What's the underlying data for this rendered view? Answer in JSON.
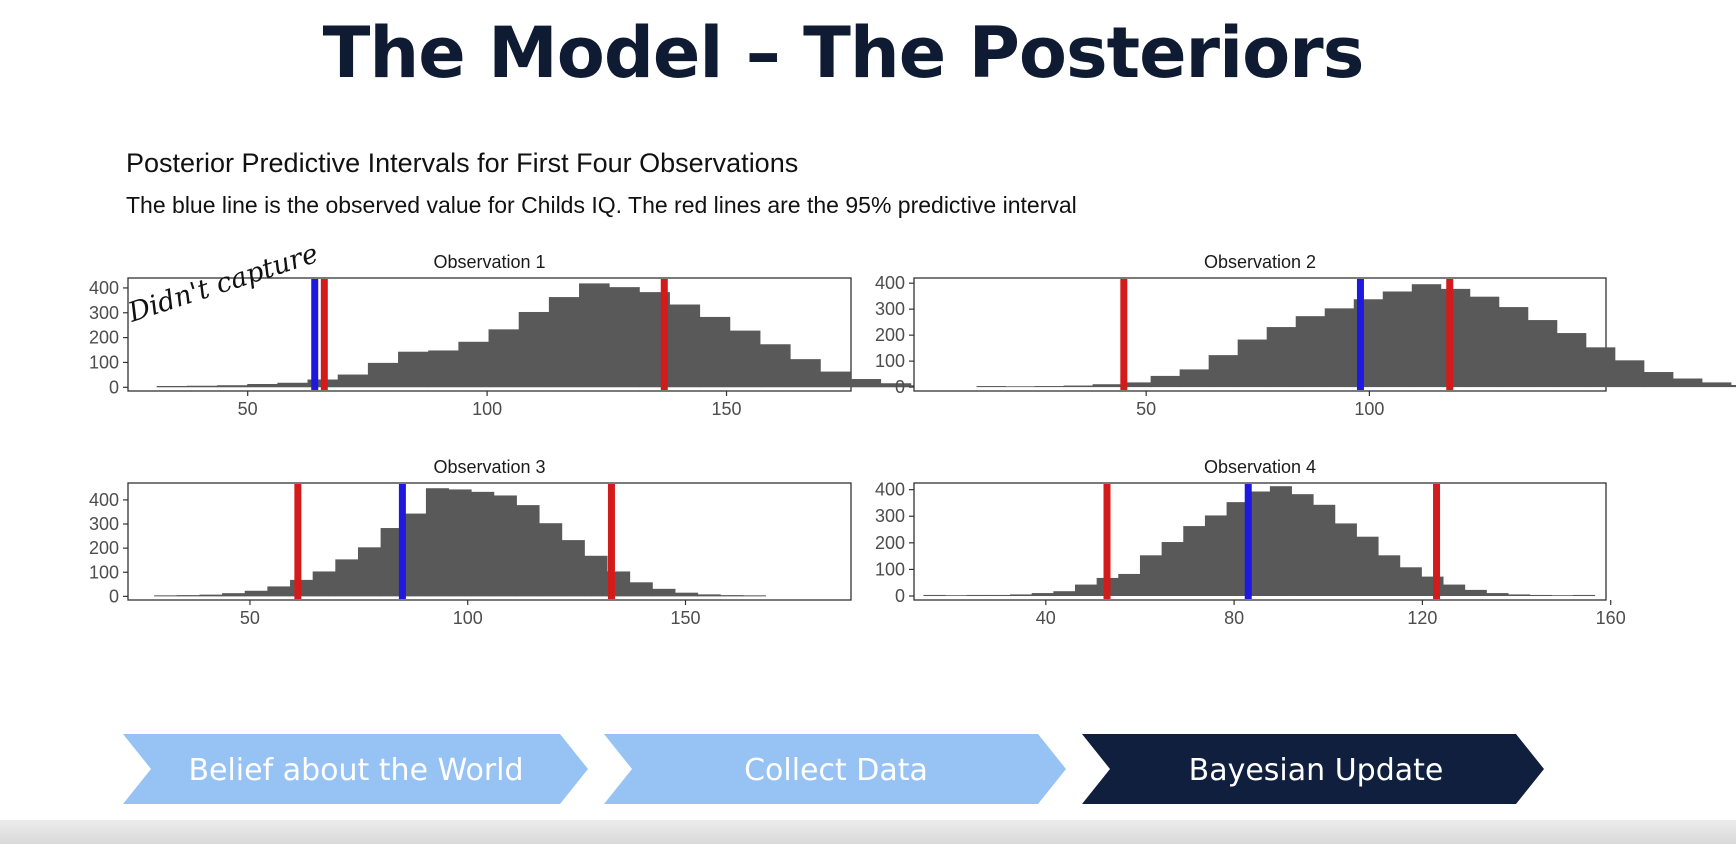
{
  "slide": {
    "title": "The Model – The Posteriors"
  },
  "chart_data": {
    "type": "bar",
    "title": "Posterior Predictive Intervals for First Four Observations",
    "subtitle": "The blue line is the observed value for Childs IQ. The red lines are the 95% predictive interval",
    "grid": false,
    "colors": {
      "bars": "#595959",
      "observed": "#1f18e0",
      "interval": "#d41b1b"
    },
    "panels": [
      {
        "title": "Observation 1",
        "bin_start": 31,
        "bin_width": 6.3,
        "counts": [
          2,
          3,
          5,
          10,
          15,
          28,
          48,
          95,
          140,
          145,
          180,
          230,
          300,
          360,
          415,
          400,
          380,
          330,
          280,
          225,
          170,
          110,
          60,
          30,
          13,
          5,
          2,
          1,
          1
        ],
        "xlim": [
          25,
          176
        ],
        "x_ticks": [
          50,
          100,
          150
        ],
        "y_ticks": [
          0,
          100,
          200,
          300,
          400
        ],
        "ylim": [
          -15,
          440
        ],
        "observed": 64,
        "interval": [
          66,
          137
        ]
      },
      {
        "title": "Observation 2",
        "bin_start": 12,
        "bin_width": 6.5,
        "counts": [
          1,
          0,
          1,
          3,
          8,
          15,
          40,
          65,
          120,
          180,
          228,
          270,
          300,
          335,
          365,
          393,
          375,
          345,
          305,
          255,
          205,
          150,
          100,
          55,
          30,
          15,
          5,
          1
        ],
        "xlim": [
          -2,
          153
        ],
        "x_ticks": [
          50,
          100
        ],
        "y_ticks": [
          0,
          100,
          200,
          300,
          400
        ],
        "ylim": [
          -15,
          420
        ],
        "observed": 98,
        "interval": [
          45,
          118
        ]
      },
      {
        "title": "Observation 3",
        "bin_start": 28,
        "bin_width": 5.2,
        "counts": [
          1,
          2,
          4,
          10,
          20,
          38,
          65,
          100,
          150,
          200,
          280,
          340,
          445,
          440,
          430,
          415,
          375,
          300,
          230,
          165,
          100,
          55,
          28,
          12,
          5,
          2,
          1
        ],
        "xlim": [
          22,
          188
        ],
        "x_ticks": [
          50,
          100,
          150
        ],
        "y_ticks": [
          0,
          100,
          200,
          300,
          400
        ],
        "ylim": [
          -15,
          470
        ],
        "observed": 85,
        "interval": [
          61,
          133
        ]
      },
      {
        "title": "Observation 4",
        "bin_start": 14,
        "bin_width": 4.6,
        "counts": [
          1,
          0,
          1,
          1,
          3,
          8,
          15,
          40,
          65,
          80,
          150,
          200,
          260,
          300,
          350,
          390,
          410,
          380,
          340,
          270,
          220,
          150,
          105,
          70,
          40,
          20,
          8,
          3,
          1,
          0,
          1
        ],
        "xlim": [
          12,
          159
        ],
        "x_ticks": [
          40,
          80,
          120,
          160
        ],
        "y_ticks": [
          0,
          100,
          200,
          300,
          400
        ],
        "ylim": [
          -15,
          425
        ],
        "observed": 83,
        "interval": [
          53,
          123
        ]
      }
    ]
  },
  "annotation": {
    "handwritten_note": "Didn't capture"
  },
  "process_flow": {
    "steps": [
      {
        "label": "Belief about the World",
        "active": false
      },
      {
        "label": "Collect Data",
        "active": false
      },
      {
        "label": "Bayesian Update",
        "active": true
      }
    ],
    "colors": {
      "inactive_fill": "#97c2f4",
      "inactive_text": "#ffffff",
      "active_fill": "#0f1f3d",
      "active_text": "#ffffff"
    }
  }
}
